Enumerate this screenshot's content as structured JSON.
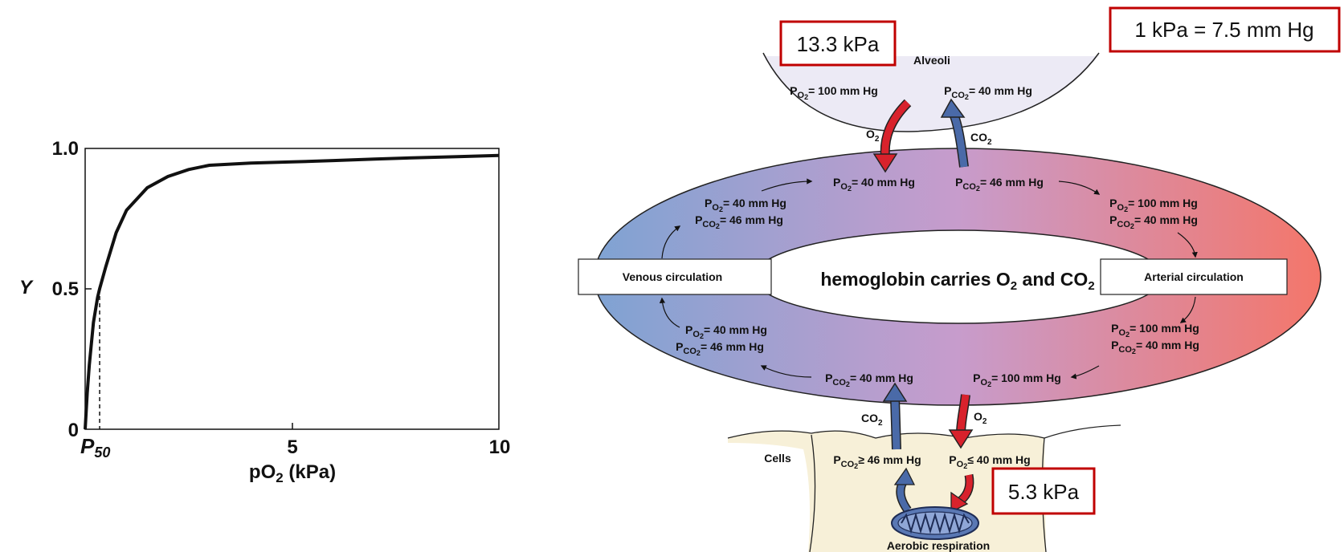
{
  "colors": {
    "callout_border": "#c00000",
    "o2_arrow": "#d8222c",
    "co2_arrow": "#4a6aa8",
    "venous": "#7fa3d3",
    "mixed": "#c79ccc",
    "arterial": "#f4766a",
    "alveoli_fill": "#eceaf5",
    "cells_fill": "#f7f0d8"
  },
  "chart_data": {
    "type": "line",
    "xlabel_main": "pO",
    "xlabel_sub": "2",
    "xlabel_unit": " (kPa)",
    "ylabel": "Y",
    "xlim": [
      0,
      10
    ],
    "ylim": [
      0,
      1.0
    ],
    "y_ticks": [
      "0",
      "0.5",
      "1.0"
    ],
    "x_ticks": [
      {
        "value": 5,
        "label": "5"
      },
      {
        "value": 10,
        "label": "10"
      }
    ],
    "p50_label_main": "P",
    "p50_label_sub": "50",
    "p50_value": 0.35,
    "series": [
      {
        "x": [
          0,
          0.05,
          0.1,
          0.2,
          0.3,
          0.35,
          0.5,
          0.75,
          1.0,
          1.5,
          2.0,
          2.5,
          3.0,
          4.0,
          5.0,
          6.0,
          7.0,
          8.0,
          9.0,
          10.0
        ],
        "y": [
          0,
          0.13,
          0.23,
          0.38,
          0.47,
          0.5,
          0.58,
          0.7,
          0.78,
          0.86,
          0.9,
          0.925,
          0.94,
          0.948,
          0.952,
          0.957,
          0.962,
          0.967,
          0.971,
          0.975
        ]
      }
    ]
  },
  "callouts": {
    "alveolar_kpa": "13.3 kPa",
    "conversion": "1 kPa = 7.5 mm Hg",
    "tissue_kpa": "5.3 kPa"
  },
  "diagram": {
    "alveoli": "Alveoli",
    "alv_po2": "= 100 mm Hg",
    "alv_pco2": "= 40 mm Hg",
    "o2": "O",
    "co2": "CO",
    "top_po2": "= 40 mm Hg",
    "top_pco2": "= 46 mm Hg",
    "venous_upper_po2": "= 40 mm Hg",
    "venous_upper_pco2": "= 46 mm Hg",
    "arterial_upper_po2": "= 100 mm Hg",
    "arterial_upper_pco2": "= 40 mm Hg",
    "venous_label": "Venous circulation",
    "arterial_label": "Arterial circulation",
    "center_text_a": "hemoglobin carries O",
    "center_text_b": " and CO",
    "venous_lower_po2": "= 40 mm Hg",
    "venous_lower_pco2": "= 46 mm Hg",
    "arterial_lower_po2": "= 100 mm Hg",
    "arterial_lower_pco2": "= 40 mm Hg",
    "bottom_pco2": "= 40 mm Hg",
    "bottom_po2": "= 100 mm Hg",
    "cells": "Cells",
    "cells_pco2": "≥ 46 mm Hg",
    "cells_po2": "≤ 40 mm Hg",
    "respiration": "Aerobic respiration",
    "p": "P",
    "sub_o2": "O2",
    "sub_co2": "CO2",
    "two": "2"
  }
}
